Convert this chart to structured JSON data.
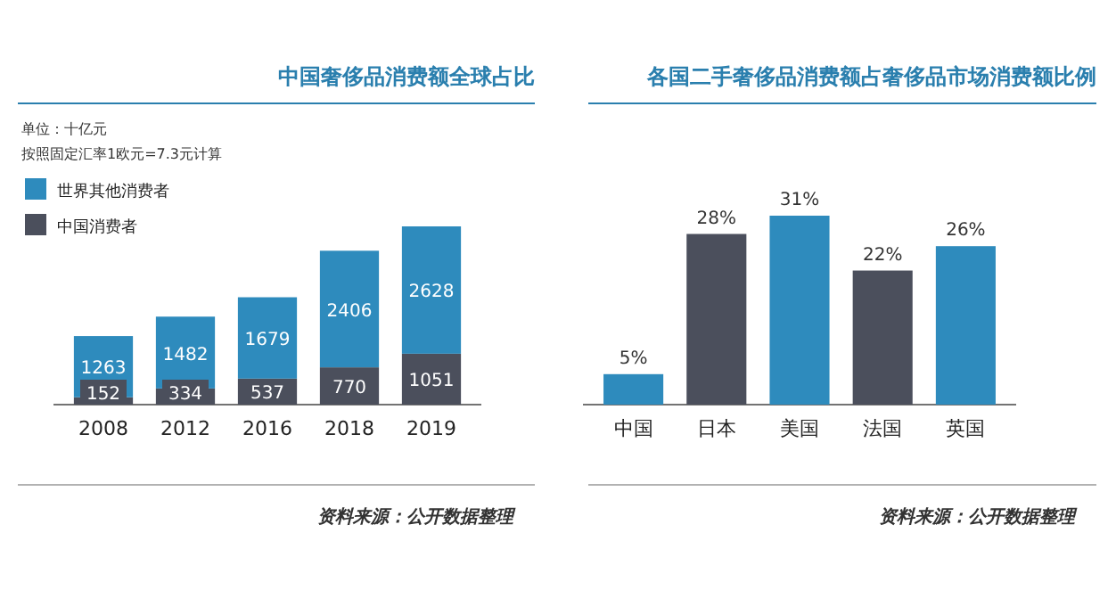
{
  "chart_data": [
    {
      "type": "bar",
      "title": "中国奢侈品消费额全球占比",
      "annotations": [
        "单位：十亿元",
        "按照固定汇率1欧元=7.3元计算",
        "资料来源：公开数据整理"
      ],
      "categories": [
        "2008",
        "2012",
        "2016",
        "2018",
        "2019"
      ],
      "stacked": true,
      "data_labels": true,
      "legend": "top left",
      "series": [
        {
          "name": "中国消费者",
          "color": "#4b4f5c",
          "values": [
            152,
            334,
            537,
            770,
            1051
          ]
        },
        {
          "name": "世界其他消费者",
          "color": "#2e8bbd",
          "values": [
            1263,
            1482,
            1679,
            2406,
            2628
          ]
        }
      ]
    },
    {
      "type": "bar",
      "title": "各国二手奢侈品消费额占奢侈品市场消费额比例",
      "annotations": [
        "资料来源：公开数据整理"
      ],
      "categories": [
        "中国",
        "日本",
        "美国",
        "法国",
        "英国"
      ],
      "values": [
        5,
        28,
        31,
        22,
        26
      ],
      "value_labels": [
        "5%",
        "28%",
        "31%",
        "22%",
        "26%"
      ],
      "colors": [
        "#2e8bbd",
        "#4b4f5c",
        "#2e8bbd",
        "#4b4f5c",
        "#2e8bbd"
      ]
    }
  ]
}
